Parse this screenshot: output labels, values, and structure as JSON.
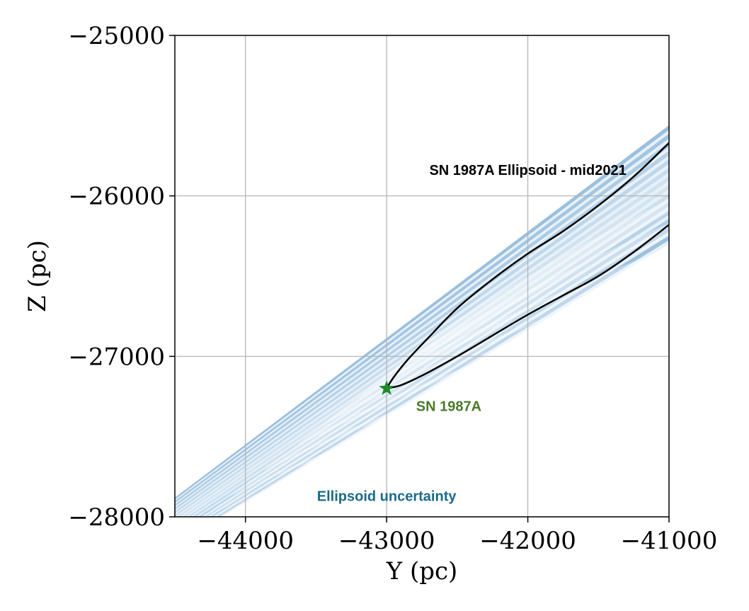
{
  "chart_data": {
    "type": "line",
    "xlabel": "Y (pc)",
    "ylabel": "Z (pc)",
    "xlim": [
      -44500,
      -41000
    ],
    "ylim": [
      -28000,
      -25000
    ],
    "grid": true,
    "x_ticks": [
      -44000,
      -43000,
      -42000,
      -41000
    ],
    "x_tick_labels": [
      "−44000",
      "−43000",
      "−42000",
      "−41000"
    ],
    "y_ticks": [
      -25000,
      -26000,
      -27000,
      -28000
    ],
    "y_tick_labels": [
      "−25000",
      "−26000",
      "−27000",
      "−28000"
    ],
    "ellipsoid": {
      "upper_branch": {
        "x": [
          -43000,
          -42950,
          -42850,
          -42700,
          -42500,
          -42250,
          -42000,
          -41750,
          -41500,
          -41250,
          -41000
        ],
        "y": [
          -27200,
          -27130,
          -27020,
          -26880,
          -26700,
          -26520,
          -26360,
          -26220,
          -26060,
          -25880,
          -25670
        ]
      },
      "lower_branch": {
        "x": [
          -43000,
          -42900,
          -42750,
          -42500,
          -42250,
          -42000,
          -41750,
          -41500,
          -41250,
          -41000
        ],
        "y": [
          -27200,
          -27180,
          -27120,
          -27000,
          -26870,
          -26740,
          -26620,
          -26500,
          -26350,
          -26180
        ]
      },
      "color": "#000000"
    },
    "uncertainty": {
      "color_dark": "#1f6fb8",
      "color_light": "#e3eef7",
      "upper_edge": {
        "x": [
          -44500,
          -41000
        ],
        "y": [
          -27880,
          -25560
        ]
      },
      "lower_edge": {
        "x": [
          -44500,
          -41000
        ],
        "y": [
          -28180,
          -26300
        ]
      }
    },
    "marker": {
      "x": -43000,
      "y": -27200,
      "shape": "star",
      "color": "#1a8a2a"
    },
    "annotations": [
      {
        "text": "SN 1987A Ellipsoid - mid2021",
        "x": -42000,
        "y": -25870,
        "color": "#000000"
      },
      {
        "text": "SN 1987A",
        "x": -42560,
        "y": -27340,
        "color": "#4a7a2a"
      },
      {
        "text": "Ellipsoid uncertainty",
        "x": -43000,
        "y": -27900,
        "color": "#1a6a8a"
      }
    ]
  }
}
